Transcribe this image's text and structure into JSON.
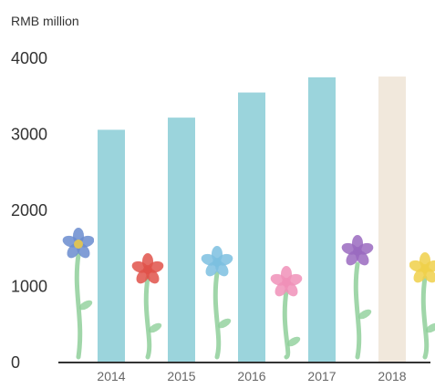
{
  "chart_data": {
    "type": "bar",
    "unit_label": "RMB million",
    "categories": [
      "2014",
      "2015",
      "2016",
      "2017",
      "2018"
    ],
    "values": [
      3060,
      3220,
      3550,
      3750,
      3760
    ],
    "ylim": [
      0,
      4000
    ],
    "yticks": [
      0,
      1000,
      2000,
      3000,
      4000
    ],
    "grid": false,
    "colors": {
      "bar": "#9bd4dc",
      "highlight_bar": "#f1e8dc",
      "axis": "#333333",
      "text": "#333333"
    },
    "highlight_category": "2018",
    "decorations": [
      "flower-yellow-blue",
      "flower-red",
      "flower-blue",
      "flower-pink",
      "flower-purple",
      "flower-yellow"
    ]
  }
}
